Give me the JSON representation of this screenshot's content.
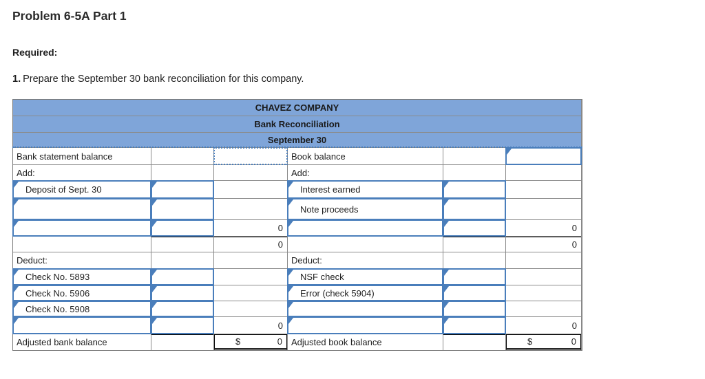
{
  "page": {
    "title": "Problem 6-5A Part 1",
    "required_label": "Required:",
    "instruction_number": "1.",
    "instruction_text": "Prepare the September 30 bank reconciliation for this company."
  },
  "colors": {
    "header_blue": "#7fa5d9",
    "input_border_blue": "#4a7ebb",
    "grid_line_gray": "#8a8a8a"
  },
  "table": {
    "title": "CHAVEZ COMPANY",
    "subtitle": "Bank Reconciliation",
    "date": "September 30",
    "bank_side": {
      "balance_label": "Bank statement balance",
      "add_label": "Add:",
      "add_item_1": "Deposit of Sept. 30",
      "add_subtotal": "0",
      "add_total": "0",
      "deduct_label": "Deduct:",
      "deduct_item_1": "Check No. 5893",
      "deduct_item_2": "Check No. 5906",
      "deduct_item_3": "Check No. 5908",
      "deduct_subtotal": "0",
      "adjusted_label": "Adjusted bank balance",
      "currency": "$",
      "adjusted_total": "0"
    },
    "book_side": {
      "balance_label": "Book balance",
      "add_label": "Add:",
      "add_item_1": "Interest earned",
      "add_item_2": "Note proceeds",
      "add_subtotal": "0",
      "add_total": "0",
      "deduct_label": "Deduct:",
      "deduct_item_1": "NSF check",
      "deduct_item_2": "Error (check 5904)",
      "deduct_subtotal": "0",
      "adjusted_label": "Adjusted book balance",
      "currency": "$",
      "adjusted_total": "0"
    }
  }
}
